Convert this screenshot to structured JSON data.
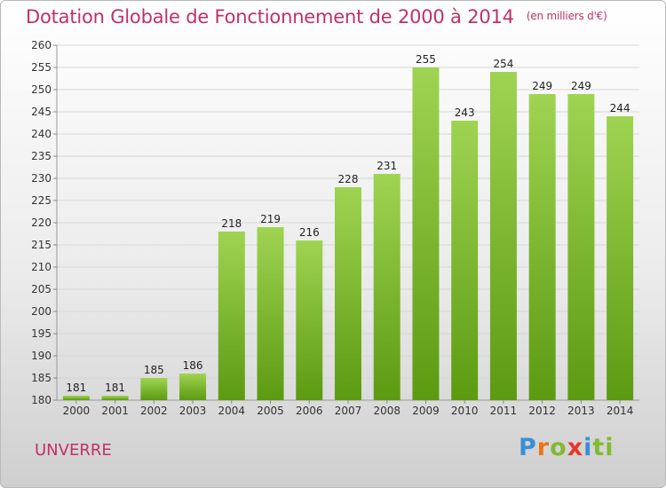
{
  "title": "Dotation Globale de Fonctionnement de 2000 à 2014",
  "subtitle": "(en milliers d'€)",
  "commune": "UNVERRE",
  "logo": {
    "text": "Proxiti",
    "parts": [
      "P",
      "r",
      "o",
      "x",
      "i",
      "ti"
    ]
  },
  "colors": {
    "title": "#c0306a",
    "bar_top": "#9fd452",
    "bar_bottom": "#5c9a12",
    "grid": "#d6d6d6"
  },
  "chart_data": {
    "type": "bar",
    "title": "Dotation Globale de Fonctionnement de 2000 à 2014",
    "subtitle": "(en milliers d'€)",
    "xlabel": "",
    "ylabel": "",
    "categories": [
      "2000",
      "2001",
      "2002",
      "2003",
      "2004",
      "2005",
      "2006",
      "2007",
      "2008",
      "2009",
      "2010",
      "2011",
      "2012",
      "2013",
      "2014"
    ],
    "values": [
      181,
      181,
      185,
      186,
      218,
      219,
      216,
      228,
      231,
      255,
      243,
      254,
      249,
      249,
      244
    ],
    "ylim": [
      180,
      260
    ],
    "yticks": [
      180,
      185,
      190,
      195,
      200,
      205,
      210,
      215,
      220,
      225,
      230,
      235,
      240,
      245,
      250,
      255,
      260
    ],
    "grid": true,
    "legend": "none"
  }
}
